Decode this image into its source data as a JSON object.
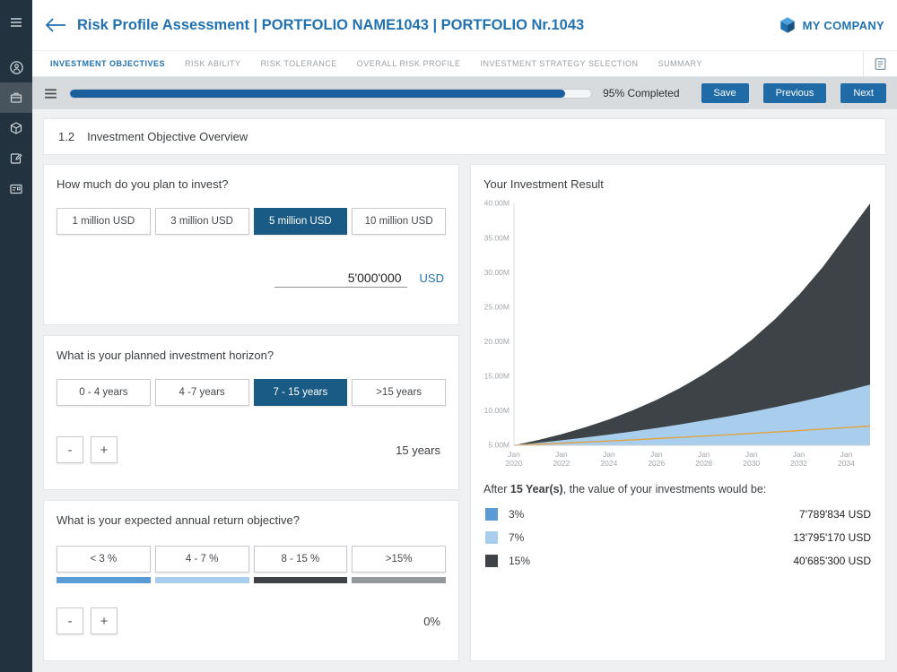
{
  "sidebar": {
    "items": [
      {
        "icon": "user-circle-icon"
      },
      {
        "icon": "briefcase-icon",
        "active": true
      },
      {
        "icon": "package-icon"
      },
      {
        "icon": "edit-icon"
      },
      {
        "icon": "card-icon"
      }
    ]
  },
  "header": {
    "title": "Risk Profile Assessment | PORTFOLIO NAME1043 | PORTFOLIO Nr.1043",
    "company_name": "MY COMPANY"
  },
  "tabs": [
    {
      "label": "INVESTMENT OBJECTIVES",
      "active": true
    },
    {
      "label": "RISK ABILITY",
      "active": false
    },
    {
      "label": "RISK TOLERANCE",
      "active": false
    },
    {
      "label": "OVERALL RISK PROFILE",
      "active": false
    },
    {
      "label": "INVESTMENT STRATEGY SELECTION",
      "active": false
    },
    {
      "label": "SUMMARY",
      "active": false
    }
  ],
  "progress": {
    "percent": "95%",
    "label": "95% Completed",
    "save_label": "Save",
    "previous_label": "Previous",
    "next_label": "Next"
  },
  "section": {
    "number": "1.2",
    "title": "Investment Objective Overview"
  },
  "amount_card": {
    "question": "How much do you plan to invest?",
    "options": [
      "1 million USD",
      "3 million USD",
      "5 million USD",
      "10 million USD"
    ],
    "selected_index": 2,
    "value": "5'000'000",
    "currency": "USD"
  },
  "horizon_card": {
    "question": "What is your planned investment horizon?",
    "options": [
      "0 - 4 years",
      "4 -7 years",
      "7 - 15 years",
      ">15 years"
    ],
    "selected_index": 2,
    "minus": "-",
    "plus": "+",
    "value": "15 years"
  },
  "return_card": {
    "question": "What is your expected annual return objective?",
    "options": [
      {
        "label": "< 3 %",
        "color": "#5b9bd5"
      },
      {
        "label": "4 - 7 %",
        "color": "#a9cdec"
      },
      {
        "label": "8 - 15 %",
        "color": "#3f4347"
      },
      {
        "label": ">15%",
        "color": "#96999c"
      }
    ],
    "minus": "-",
    "plus": "+",
    "value": "0%"
  },
  "result_card": {
    "title": "Your Investment Result",
    "after_prefix": "After ",
    "after_bold": "15 Year(s)",
    "after_suffix": ", the value of your investments would be:",
    "legend": [
      {
        "label": "3%",
        "value": "7'789'834 USD",
        "color": "#5b9bd5"
      },
      {
        "label": "7%",
        "value": "13'795'170 USD",
        "color": "#a9cdec"
      },
      {
        "label": "15%",
        "value": "40'685'300 USD",
        "color": "#3f4347"
      }
    ]
  },
  "chart_data": {
    "type": "area",
    "title": "Your Investment Result",
    "start_value_musd": 5.0,
    "years": 15,
    "ylim": [
      5,
      40
    ],
    "y_ticks": [
      5,
      10,
      15,
      20,
      25,
      30,
      35,
      40
    ],
    "y_unit": "M",
    "x_start_year": 2020,
    "x_ticks": [
      2020,
      2022,
      2024,
      2026,
      2028,
      2030,
      2032,
      2034
    ],
    "x_tick_prefix": "Jan",
    "grid": false,
    "legend_position": "below",
    "series": [
      {
        "name": "15%",
        "rate": 0.15,
        "style": "area",
        "color": "#3e4347",
        "end_value_musd": 40.6853
      },
      {
        "name": "7%",
        "rate": 0.07,
        "style": "area",
        "color": "#a9cdec",
        "end_value_musd": 13.79517
      },
      {
        "name": "3%",
        "rate": 0.03,
        "style": "line",
        "color": "#e0a43e",
        "end_value_musd": 7.789834
      }
    ]
  }
}
